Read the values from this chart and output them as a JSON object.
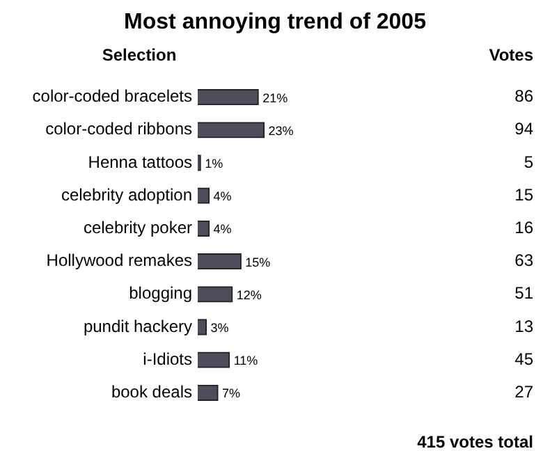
{
  "chart_data": {
    "type": "bar",
    "orientation": "horizontal",
    "title": "Most annoying trend of 2005",
    "ylabel": "Selection",
    "categories": [
      "color-coded bracelets",
      "color-coded ribbons",
      "Henna tattoos",
      "celebrity adoption",
      "celebrity poker",
      "Hollywood remakes",
      "blogging",
      "pundit hackery",
      "i-Idiots",
      "book deals"
    ],
    "values": [
      21,
      23,
      1,
      4,
      4,
      15,
      12,
      3,
      11,
      7
    ],
    "value_labels": [
      "21%",
      "23%",
      "1%",
      "4%",
      "4%",
      "15%",
      "12%",
      "3%",
      "11%",
      "7%"
    ],
    "color": "#4d4d5c",
    "tick_labels": "y",
    "legend": false,
    "annotations": [
      "Votes",
      "86",
      "94",
      "5",
      "15",
      "16",
      "63",
      "51",
      "13",
      "45",
      "27",
      "415 votes total"
    ]
  }
}
